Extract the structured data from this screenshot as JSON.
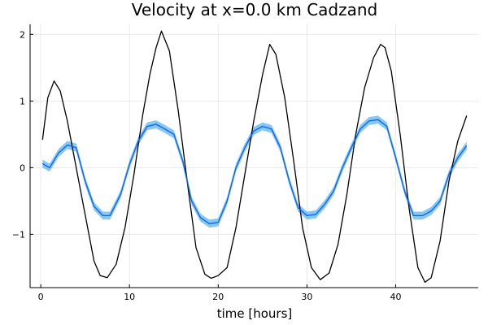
{
  "chart_data": {
    "type": "line",
    "title": "Velocity at x=0.0 km Cadzand",
    "xlabel": "time [hours]",
    "ylabel": "",
    "xlim": [
      -1.2,
      49.3
    ],
    "ylim": [
      -1.8,
      2.15
    ],
    "xticks": [
      0,
      10,
      20,
      30,
      40
    ],
    "xtick_labels": [
      "0",
      "10",
      "20",
      "30",
      "40"
    ],
    "yticks": [
      -1,
      0,
      1,
      2
    ],
    "ytick_labels": [
      "−1",
      "0",
      "1",
      "2"
    ],
    "grid": true,
    "legend": "none",
    "series": [
      {
        "color": "#000000",
        "x": [
          0.2,
          0.8,
          1.5,
          2.2,
          3,
          4,
          5,
          6,
          6.7,
          7.5,
          8.5,
          9.5,
          10.5,
          11.5,
          12.3,
          13,
          13.6,
          14.5,
          15.5,
          16.5,
          17.5,
          18.5,
          19.2,
          20,
          21,
          22,
          23,
          24,
          25,
          25.8,
          26.5,
          27.5,
          28.5,
          29.5,
          30.5,
          31.5,
          32.5,
          33.5,
          34.5,
          35.5,
          36.5,
          37.5,
          38.3,
          38.8,
          39.5,
          40.5,
          41.5,
          42.5,
          43.3,
          44,
          45,
          46,
          47,
          48
        ],
        "y": [
          0.42,
          1.05,
          1.3,
          1.15,
          0.7,
          0.0,
          -0.7,
          -1.4,
          -1.62,
          -1.65,
          -1.45,
          -0.9,
          -0.1,
          0.8,
          1.4,
          1.8,
          2.05,
          1.75,
          0.85,
          -0.2,
          -1.2,
          -1.6,
          -1.66,
          -1.62,
          -1.5,
          -0.9,
          -0.1,
          0.7,
          1.4,
          1.85,
          1.7,
          1.05,
          0.1,
          -0.9,
          -1.5,
          -1.68,
          -1.58,
          -1.15,
          -0.4,
          0.5,
          1.2,
          1.65,
          1.85,
          1.8,
          1.45,
          0.5,
          -0.6,
          -1.5,
          -1.72,
          -1.65,
          -1.1,
          -0.2,
          0.4,
          0.78
        ]
      },
      {
        "color": "#0d5ef2",
        "x": [
          0.2,
          1,
          2,
          3,
          4,
          5,
          6,
          7,
          7.8,
          9,
          10,
          11,
          12,
          13,
          14,
          15,
          16,
          17,
          18,
          19,
          20,
          21,
          22,
          23,
          24,
          25,
          26,
          27,
          28,
          29,
          30,
          31,
          32,
          33,
          34,
          35,
          36,
          37,
          38,
          39,
          40,
          41,
          42,
          43,
          44,
          45,
          46,
          47,
          48
        ],
        "y": [
          0.06,
          0.0,
          0.22,
          0.34,
          0.3,
          -0.2,
          -0.58,
          -0.72,
          -0.72,
          -0.4,
          0.05,
          0.4,
          0.62,
          0.65,
          0.58,
          0.5,
          0.1,
          -0.5,
          -0.75,
          -0.84,
          -0.82,
          -0.5,
          0.0,
          0.3,
          0.55,
          0.62,
          0.58,
          0.3,
          -0.2,
          -0.6,
          -0.72,
          -0.7,
          -0.55,
          -0.35,
          0.0,
          0.3,
          0.58,
          0.7,
          0.72,
          0.62,
          0.15,
          -0.35,
          -0.72,
          -0.72,
          -0.65,
          -0.5,
          -0.1,
          0.15,
          0.33
        ],
        "band": 0.06,
        "band_color": "#5bb6ef"
      }
    ]
  }
}
